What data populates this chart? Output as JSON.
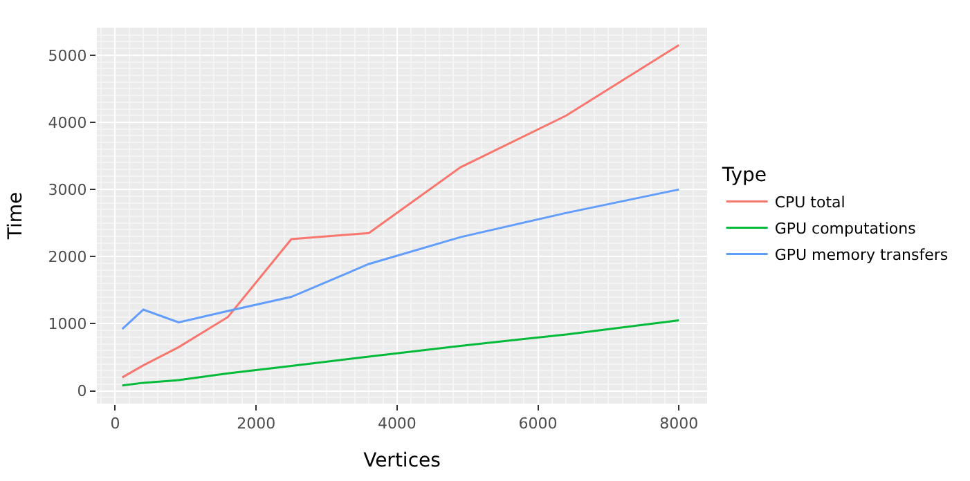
{
  "chart_data": {
    "type": "line",
    "xlabel": "Vertices",
    "ylabel": "Time",
    "legend_title": "Type",
    "x": [
      100,
      400,
      900,
      1600,
      2500,
      3600,
      4900,
      6400,
      8000
    ],
    "series": [
      {
        "name": "CPU total",
        "color": "#f8766d",
        "values": [
          200,
          380,
          650,
          1100,
          2260,
          2350,
          3330,
          4100,
          5150
        ]
      },
      {
        "name": "GPU computations",
        "color": "#00ba38",
        "values": [
          80,
          120,
          160,
          260,
          370,
          510,
          670,
          840,
          1050
        ]
      },
      {
        "name": "GPU memory transfers",
        "color": "#619cff",
        "values": [
          920,
          1210,
          1020,
          1190,
          1400,
          1890,
          2290,
          2650,
          3000
        ]
      }
    ],
    "xlim": [
      -260,
      8400
    ],
    "ylim": [
      -190,
      5410
    ],
    "xticks": [
      0,
      2000,
      4000,
      6000,
      8000
    ],
    "yticks": [
      0,
      1000,
      2000,
      3000,
      4000,
      5000
    ],
    "grid": true,
    "legend": "right",
    "marker": "none",
    "line_style": "solid"
  }
}
